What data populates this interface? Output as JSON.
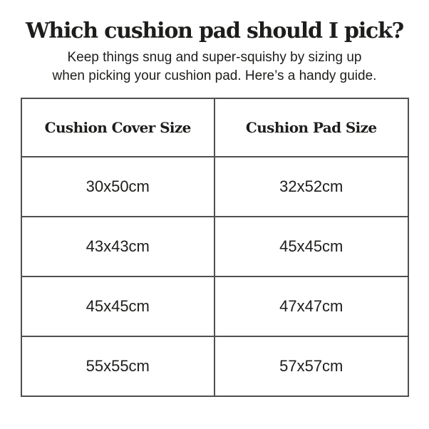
{
  "title": "Which cushion pad should I pick?",
  "subtitle": {
    "line1": "Keep things snug and super-squishy by sizing up",
    "line2": "when picking your cushion pad. Here’s a handy guide."
  },
  "table": {
    "headers": [
      "Cushion Cover Size",
      "Cushion Pad Size"
    ],
    "rows": [
      {
        "cover": "30x50cm",
        "pad": "32x52cm"
      },
      {
        "cover": "43x43cm",
        "pad": "45x45cm"
      },
      {
        "cover": "45x45cm",
        "pad": "47x47cm"
      },
      {
        "cover": "55x55cm",
        "pad": "57x57cm"
      }
    ]
  },
  "colors": {
    "background": "#ffffff",
    "text": "#1d1d1b",
    "table_border": "#4f4f4f"
  }
}
